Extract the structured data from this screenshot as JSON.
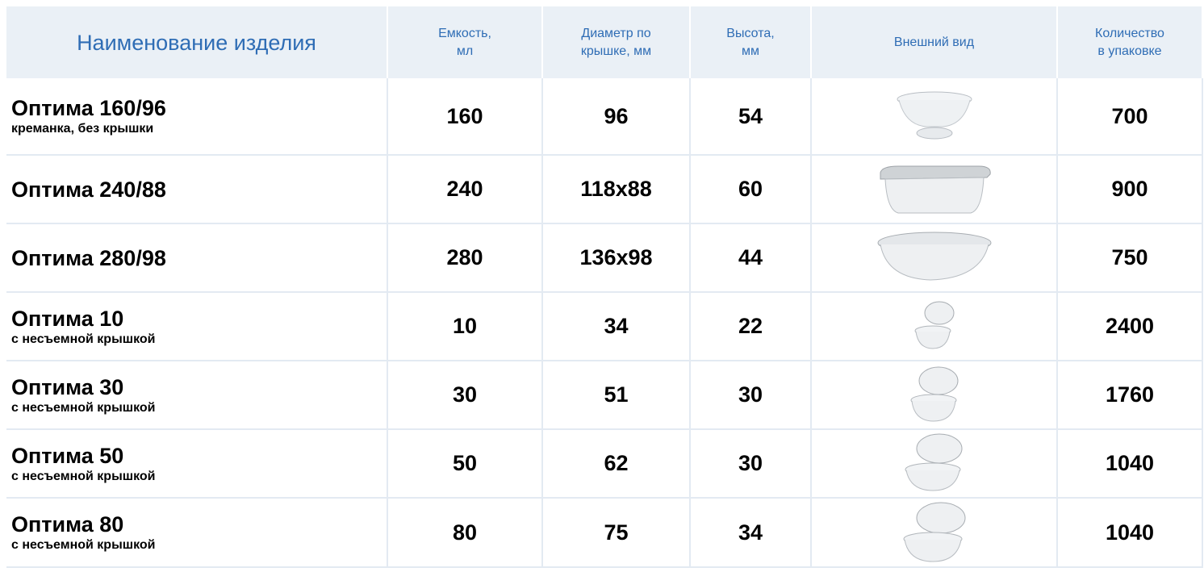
{
  "header": {
    "columns": [
      "Наименование изделия",
      "Емкость,\nмл",
      "Диаметр по\nкрышке, мм",
      "Высота,\nмм",
      "Внешний вид",
      "Количество\nв упаковке"
    ]
  },
  "table": {
    "rows": [
      {
        "name": "Оптима 160/96",
        "subtitle": "креманка, без крышки",
        "capacity": 160,
        "diameter": 96,
        "height": 54,
        "quantity": 700
      },
      {
        "name": "Оптима 240/88",
        "capacity": 240,
        "diameter": "118x88",
        "height": 60,
        "quantity": 900
      },
      {
        "name": "Оптима 280/98",
        "capacity": 280,
        "diameter": "136x98",
        "height": 44,
        "quantity": 750
      },
      {
        "name": "Оптима 10",
        "subtitle": "с несъемной крышкой",
        "capacity": 10,
        "diameter": 34,
        "height": 22,
        "quantity": 2400
      },
      {
        "name": "Оптима 30",
        "subtitle": "с несъемной крышкой",
        "capacity": 30,
        "diameter": 51,
        "height": 30,
        "quantity": 1760
      },
      {
        "name": "Оптима 50",
        "subtitle": "с несъемной крышкой",
        "capacity": 50,
        "diameter": 62,
        "height": 30,
        "quantity": 1040
      },
      {
        "name": "Оптима 80",
        "subtitle": "с несъемной крышкой",
        "capacity": 80,
        "diameter": 75,
        "height": 34,
        "quantity": 1040
      }
    ]
  }
}
